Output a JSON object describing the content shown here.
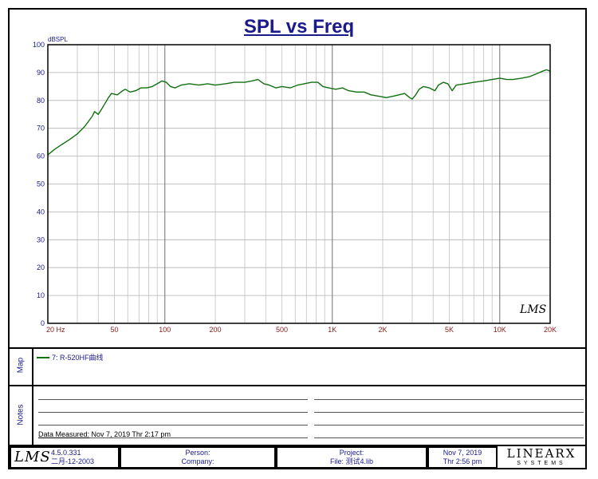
{
  "title": "SPL vs Freq",
  "chart_data": {
    "type": "line",
    "title": "SPL vs Freq",
    "ylabel": "dBSPL",
    "xlabel": "",
    "xscale": "log",
    "xlim": [
      20,
      20000
    ],
    "ylim": [
      0,
      100
    ],
    "yticks": [
      0,
      10,
      20,
      30,
      40,
      50,
      60,
      70,
      80,
      90,
      100
    ],
    "xticks": [
      {
        "value": 20,
        "label": "20  Hz"
      },
      {
        "value": 50,
        "label": "50"
      },
      {
        "value": 100,
        "label": "100"
      },
      {
        "value": 200,
        "label": "200"
      },
      {
        "value": 500,
        "label": "500"
      },
      {
        "value": 1000,
        "label": "1K"
      },
      {
        "value": 2000,
        "label": "2K"
      },
      {
        "value": 5000,
        "label": "5K"
      },
      {
        "value": 10000,
        "label": "10K"
      },
      {
        "value": 20000,
        "label": "20K"
      }
    ],
    "grid": true,
    "series": [
      {
        "name": "7: R-520HF曲线",
        "color": "#107010",
        "points": [
          [
            20,
            60.5
          ],
          [
            22,
            62.5
          ],
          [
            24,
            64
          ],
          [
            27,
            66
          ],
          [
            30,
            68
          ],
          [
            33,
            70.5
          ],
          [
            35,
            72.5
          ],
          [
            37,
            74.5
          ],
          [
            38,
            76
          ],
          [
            40,
            75
          ],
          [
            42,
            77
          ],
          [
            44,
            79
          ],
          [
            46,
            81
          ],
          [
            48,
            82.5
          ],
          [
            52,
            82
          ],
          [
            56,
            83.5
          ],
          [
            58,
            84
          ],
          [
            62,
            83
          ],
          [
            67,
            83.5
          ],
          [
            72,
            84.5
          ],
          [
            78,
            84.5
          ],
          [
            84,
            85
          ],
          [
            90,
            86
          ],
          [
            96,
            87
          ],
          [
            102,
            86.5
          ],
          [
            108,
            85
          ],
          [
            115,
            84.5
          ],
          [
            125,
            85.5
          ],
          [
            140,
            86
          ],
          [
            160,
            85.5
          ],
          [
            180,
            86
          ],
          [
            200,
            85.5
          ],
          [
            230,
            86
          ],
          [
            260,
            86.5
          ],
          [
            300,
            86.5
          ],
          [
            330,
            87
          ],
          [
            360,
            87.5
          ],
          [
            390,
            86
          ],
          [
            420,
            85.5
          ],
          [
            460,
            84.5
          ],
          [
            500,
            85
          ],
          [
            560,
            84.5
          ],
          [
            620,
            85.5
          ],
          [
            680,
            86
          ],
          [
            750,
            86.5
          ],
          [
            820,
            86.5
          ],
          [
            880,
            85
          ],
          [
            950,
            84.5
          ],
          [
            1050,
            84
          ],
          [
            1150,
            84.5
          ],
          [
            1250,
            83.5
          ],
          [
            1400,
            83
          ],
          [
            1550,
            83
          ],
          [
            1700,
            82
          ],
          [
            1900,
            81.5
          ],
          [
            2100,
            81
          ],
          [
            2300,
            81.5
          ],
          [
            2500,
            82
          ],
          [
            2700,
            82.5
          ],
          [
            2900,
            81
          ],
          [
            3000,
            80.5
          ],
          [
            3150,
            82
          ],
          [
            3300,
            84
          ],
          [
            3500,
            85
          ],
          [
            3800,
            84.5
          ],
          [
            4100,
            83.5
          ],
          [
            4300,
            85.5
          ],
          [
            4600,
            86.5
          ],
          [
            4900,
            86
          ],
          [
            5200,
            83.5
          ],
          [
            5500,
            85.5
          ],
          [
            6200,
            86
          ],
          [
            7000,
            86.5
          ],
          [
            8000,
            87
          ],
          [
            9000,
            87.5
          ],
          [
            10000,
            88
          ],
          [
            11000,
            87.5
          ],
          [
            12000,
            87.5
          ],
          [
            13500,
            88
          ],
          [
            15000,
            88.5
          ],
          [
            16500,
            89.5
          ],
          [
            18000,
            90.5
          ],
          [
            19000,
            91
          ],
          [
            20000,
            90.5
          ]
        ]
      }
    ]
  },
  "chart_logo": "LMS",
  "map_label": "Map",
  "notes_label": "Notes",
  "legend": {
    "entry": "7: R-520HF曲线"
  },
  "measured": {
    "label": "Data Measured:",
    "value": " Nov  7, 2019  Thr  2:17 pm"
  },
  "footer": {
    "logo": "LMS",
    "version": "4.5.0.331",
    "version_date": "二月-12-2003",
    "person": "Person:",
    "company": "Company:",
    "project": "Project:",
    "file": "File: 测试4.lib",
    "date": "Nov  7, 2019",
    "time": "Thr  2:56 pm",
    "brand": "LINEARX",
    "brand_sub": "SYSTEMS"
  }
}
